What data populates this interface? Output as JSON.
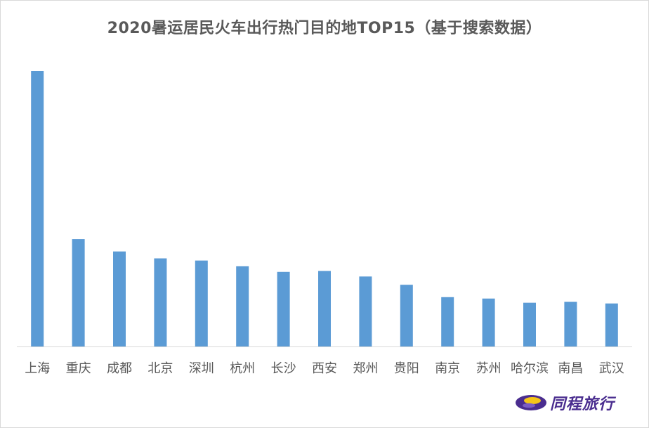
{
  "chart_data": {
    "type": "bar",
    "title": "2020暑运居民火车出行热门目的地TOP15（基于搜索数据）",
    "categories": [
      "上海",
      "重庆",
      "成都",
      "北京",
      "深圳",
      "杭州",
      "长沙",
      "西安",
      "郑州",
      "贵阳",
      "南京",
      "苏州",
      "哈尔滨",
      "南昌",
      "武汉"
    ],
    "series": [
      {
        "values": [
          100,
          39,
          34.5,
          32,
          31.2,
          29.1,
          27.1,
          27.4,
          25.4,
          22.4,
          17.9,
          17.4,
          15.9,
          16.2,
          15.6
        ]
      }
    ],
    "ylim": [
      0,
      100
    ],
    "grid": false,
    "bar_color": "#5b9bd5",
    "axis_color": "#d9d9d9",
    "tick_label_color": "#595959"
  },
  "logo": {
    "text": "同程旅行",
    "icon": "tongcheng-logo-icon",
    "color": "#4a2d8f",
    "accent": "#f5c518"
  }
}
